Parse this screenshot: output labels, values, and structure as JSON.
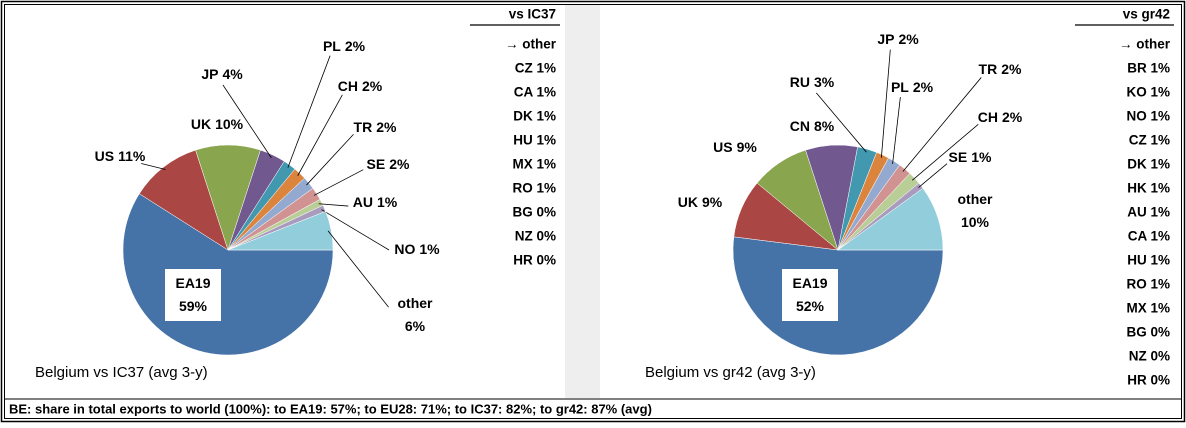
{
  "chart_data": [
    {
      "type": "pie",
      "title": "Belgium vs IC37 (avg 3-y)",
      "categories": [
        "EA19",
        "US",
        "UK",
        "JP",
        "PL",
        "CH",
        "TR",
        "SE",
        "AU",
        "NO",
        "other"
      ],
      "values": [
        59,
        11,
        10,
        4,
        2,
        2,
        2,
        2,
        1,
        1,
        6
      ],
      "value_labels": [
        "59%",
        "11%",
        "10%",
        "4%",
        "2%",
        "2%",
        "2%",
        "2%",
        "1%",
        "1%",
        "6%"
      ],
      "colors": [
        "#4572a7",
        "#aa4643",
        "#89a54e",
        "#71588f",
        "#4198af",
        "#db843d",
        "#93a9cf",
        "#d19392",
        "#b9cd96",
        "#a99bbd",
        "#92cddc"
      ]
    },
    {
      "type": "pie",
      "title": "Belgium vs gr42 (avg 3-y)",
      "categories": [
        "EA19",
        "UK",
        "US",
        "CN",
        "RU",
        "JP",
        "PL",
        "TR",
        "CH",
        "SE",
        "other"
      ],
      "values": [
        52,
        9,
        9,
        8,
        3,
        2,
        2,
        2,
        2,
        1,
        10
      ],
      "value_labels": [
        "52%",
        "9%",
        "9%",
        "8%",
        "3%",
        "2%",
        "2%",
        "2%",
        "2%",
        "1%",
        "10%"
      ],
      "colors": [
        "#4572a7",
        "#aa4643",
        "#89a54e",
        "#71588f",
        "#4198af",
        "#db843d",
        "#93a9cf",
        "#d19392",
        "#b9cd96",
        "#a99bbd",
        "#92cddc"
      ]
    }
  ],
  "side_lists": [
    {
      "title": "vs IC37",
      "items": [
        "→ other",
        "CZ 1%",
        "CA 1%",
        "DK 1%",
        "HU 1%",
        "MX 1%",
        "RO 1%",
        "BG 0%",
        "NZ 0%",
        "HR 0%"
      ]
    },
    {
      "title": "vs gr42",
      "items": [
        "→ other",
        "BR 1%",
        "KO 1%",
        "NO 1%",
        "CZ 1%",
        "DK 1%",
        "HK 1%",
        "AU 1%",
        "CA 1%",
        "HU 1%",
        "RO 1%",
        "MX 1%",
        "BG 0%",
        "NZ 0%",
        "HR 0%"
      ]
    }
  ],
  "footer": "BE: share in total exports to world (100%): to EA19: 57%; to EU28: 71%; to IC37: 82%; to gr42: 87% (avg)"
}
